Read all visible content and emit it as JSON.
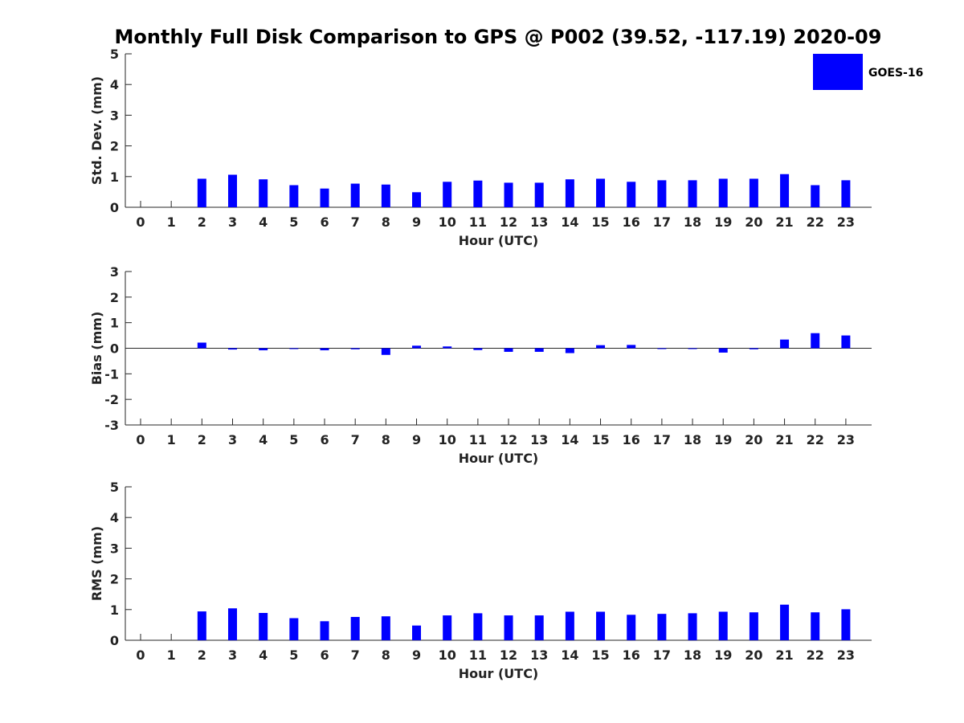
{
  "figure": {
    "title": "Monthly Full Disk Comparison to GPS @ P002 (39.52, -117.19) 2020-09"
  },
  "legend": {
    "label": "GOES-16",
    "color": "#0000ff",
    "placement": "top-right"
  },
  "chart_data": [
    {
      "type": "bar",
      "name": "std-dev",
      "title": "",
      "xlabel": "Hour (UTC)",
      "ylabel": "Std. Dev. (mm)",
      "ylim": [
        0,
        5
      ],
      "yticks": [
        0,
        1,
        2,
        3,
        4,
        5
      ],
      "ytick_labels": [
        "0",
        "1",
        "2",
        "3",
        "4",
        "5"
      ],
      "categories": [
        "0",
        "1",
        "2",
        "3",
        "4",
        "5",
        "6",
        "7",
        "8",
        "9",
        "10",
        "11",
        "12",
        "13",
        "14",
        "15",
        "16",
        "17",
        "18",
        "19",
        "20",
        "21",
        "22",
        "23"
      ],
      "series": [
        {
          "name": "GOES-16",
          "color": "#0000ff",
          "values": [
            null,
            null,
            0.93,
            1.06,
            0.91,
            0.72,
            0.61,
            0.77,
            0.74,
            0.49,
            0.83,
            0.87,
            0.8,
            0.8,
            0.91,
            0.93,
            0.83,
            0.88,
            0.88,
            0.93,
            0.93,
            1.08,
            0.72,
            0.88
          ]
        }
      ]
    },
    {
      "type": "bar",
      "name": "bias",
      "title": "",
      "xlabel": "Hour (UTC)",
      "ylabel": "Bias (mm)",
      "ylim": [
        -3,
        3
      ],
      "yticks": [
        -3,
        -2,
        -1,
        0,
        1,
        2,
        3
      ],
      "ytick_labels": [
        "-3",
        "-2",
        "-1",
        "0",
        "1",
        "2",
        "3"
      ],
      "zero_line": true,
      "categories": [
        "0",
        "1",
        "2",
        "3",
        "4",
        "5",
        "6",
        "7",
        "8",
        "9",
        "10",
        "11",
        "12",
        "13",
        "14",
        "15",
        "16",
        "17",
        "18",
        "19",
        "20",
        "21",
        "22",
        "23"
      ],
      "series": [
        {
          "name": "GOES-16",
          "color": "#0000ff",
          "values": [
            null,
            null,
            0.22,
            -0.05,
            -0.08,
            -0.02,
            -0.08,
            -0.04,
            -0.26,
            0.1,
            0.07,
            -0.07,
            -0.14,
            -0.14,
            -0.19,
            0.12,
            0.13,
            -0.02,
            -0.02,
            -0.17,
            -0.04,
            0.34,
            0.59,
            0.5
          ]
        }
      ]
    },
    {
      "type": "bar",
      "name": "rms",
      "title": "",
      "xlabel": "Hour (UTC)",
      "ylabel": "RMS (mm)",
      "ylim": [
        0,
        5
      ],
      "yticks": [
        0,
        1,
        2,
        3,
        4,
        5
      ],
      "ytick_labels": [
        "0",
        "1",
        "2",
        "3",
        "4",
        "5"
      ],
      "categories": [
        "0",
        "1",
        "2",
        "3",
        "4",
        "5",
        "6",
        "7",
        "8",
        "9",
        "10",
        "11",
        "12",
        "13",
        "14",
        "15",
        "16",
        "17",
        "18",
        "19",
        "20",
        "21",
        "22",
        "23"
      ],
      "series": [
        {
          "name": "GOES-16",
          "color": "#0000ff",
          "values": [
            null,
            null,
            0.94,
            1.04,
            0.89,
            0.72,
            0.62,
            0.76,
            0.78,
            0.48,
            0.81,
            0.88,
            0.81,
            0.81,
            0.93,
            0.93,
            0.83,
            0.86,
            0.88,
            0.93,
            0.91,
            1.16,
            0.91,
            1.01
          ]
        }
      ]
    }
  ]
}
